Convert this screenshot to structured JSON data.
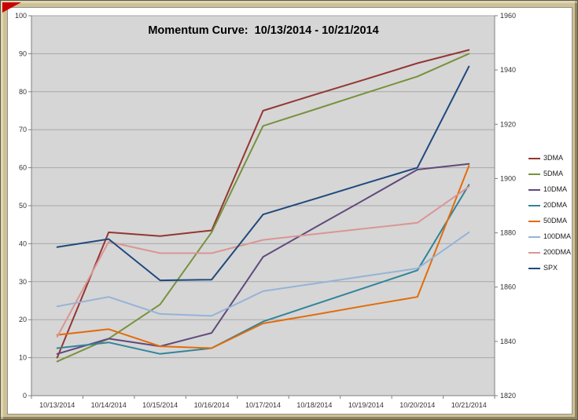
{
  "frame": {
    "background": "#CEC194",
    "corner_marker_color": "#CC0000"
  },
  "chart_data": {
    "type": "line",
    "title": "Momentum Curve:  10/13/2014 - 10/21/2014",
    "plot_bg": "#D6D6D6",
    "grid_color": "#A8A8A8",
    "axis_color": "#808080",
    "tick_label_color": "#333333",
    "legend_position": "right",
    "grid": true,
    "categories": [
      "10/13/2014",
      "10/14/2014",
      "10/15/2014",
      "10/16/2014",
      "10/17/2014",
      "10/18/2014",
      "10/19/2014",
      "10/20/2014",
      "10/21/2014"
    ],
    "left_axis": {
      "min": 0,
      "max": 100,
      "step": 10,
      "ticks": [
        0,
        10,
        20,
        30,
        40,
        50,
        60,
        70,
        80,
        90,
        100
      ]
    },
    "right_axis": {
      "min": 1820,
      "max": 1960,
      "step": 20,
      "ticks": [
        1820,
        1840,
        1860,
        1880,
        1900,
        1920,
        1940,
        1960
      ]
    },
    "series": [
      {
        "name": "3DMA",
        "color": "#943634",
        "axis": "left",
        "values": [
          10,
          43,
          42,
          43.5,
          75,
          79.2,
          83.3,
          87.5,
          91
        ]
      },
      {
        "name": "5DMA",
        "color": "#76923C",
        "axis": "left",
        "values": [
          9,
          15,
          24,
          43,
          71,
          75.3,
          79.7,
          84,
          90
        ]
      },
      {
        "name": "10DMA",
        "color": "#604A7B",
        "axis": "left",
        "values": [
          11,
          15,
          13,
          16.5,
          36.5,
          44.2,
          51.8,
          59.5,
          61
        ]
      },
      {
        "name": "20DMA",
        "color": "#31849B",
        "axis": "left",
        "values": [
          12.5,
          14,
          11,
          12.5,
          19.5,
          24,
          28.5,
          33,
          55.5
        ]
      },
      {
        "name": "50DMA",
        "color": "#E36C0A",
        "axis": "left",
        "values": [
          16,
          17.5,
          13,
          12.5,
          19,
          21.3,
          23.7,
          26,
          60.5
        ]
      },
      {
        "name": "100DMA",
        "color": "#95B3D7",
        "axis": "left",
        "values": [
          23.5,
          26,
          21.5,
          21,
          27.5,
          29.5,
          31.5,
          33.5,
          43
        ]
      },
      {
        "name": "200DMA",
        "color": "#D99694",
        "axis": "left",
        "values": [
          15.5,
          40.5,
          37.5,
          37.5,
          41,
          42.5,
          44,
          45.5,
          55
        ]
      },
      {
        "name": "SPX",
        "color": "#1F497D",
        "axis": "right",
        "values": [
          1874.74,
          1877.7,
          1862.49,
          1862.76,
          1886.76,
          1892.5,
          1898.3,
          1904.01,
          1941.28
        ]
      }
    ]
  }
}
